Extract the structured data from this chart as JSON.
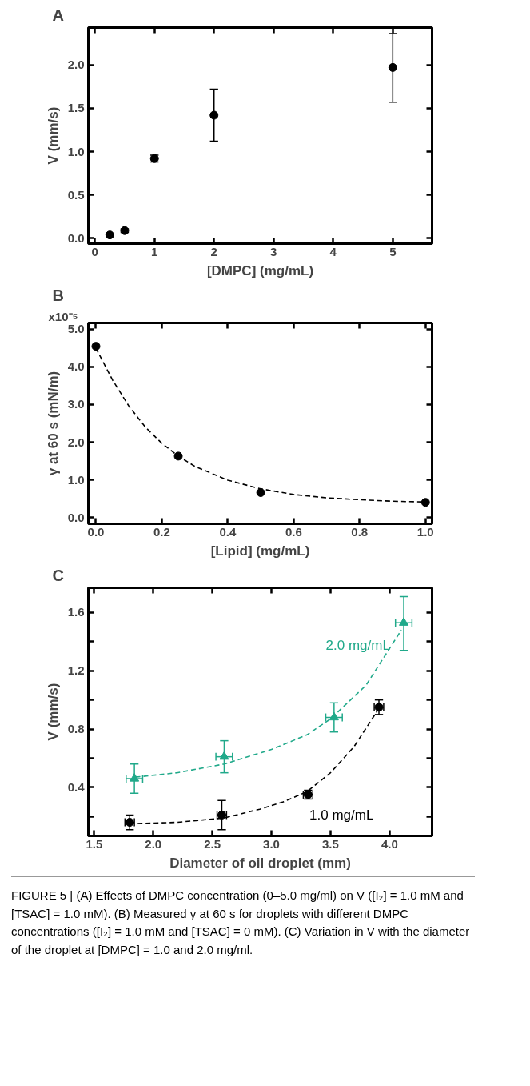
{
  "chart_data": [
    {
      "type": "scatter",
      "title": "A",
      "xlabel": "[DMPC] (mg/mL)",
      "ylabel": "V (mm/s)",
      "x": [
        0.25,
        0.5,
        1,
        2,
        5
      ],
      "values": [
        0.04,
        0.09,
        0.92,
        1.42,
        1.97
      ],
      "errors": [
        null,
        0.02,
        0.04,
        [
          1.12,
          1.72
        ],
        [
          1.57,
          2.36
        ]
      ],
      "color": "#000000",
      "marker": "circle",
      "xlim": [
        -0.11,
        5.66
      ],
      "ylim": [
        -0.06,
        2.43
      ],
      "xticks": [
        0,
        1,
        2,
        3,
        4,
        5
      ],
      "yticks": [
        {
          "value": 0,
          "label": "0.0"
        },
        0.5,
        {
          "value": 1,
          "label": "1.0"
        },
        1.5,
        {
          "value": 2,
          "label": "2.0"
        }
      ],
      "grid": false
    },
    {
      "type": "scatter",
      "title": "B",
      "xlabel": "[Lipid] (mg/mL)",
      "ylabel": "γ at 60 s (mN/m)",
      "xlim": [
        -0.023,
        1.02
      ],
      "ylim": [
        -0.17,
        5.17
      ],
      "xticks": [
        {
          "value": 0,
          "label": "0.0"
        },
        0.2,
        0.4,
        0.6,
        0.8,
        {
          "value": 1,
          "label": "1.0"
        }
      ],
      "yticks": [
        {
          "value": 0,
          "label": "0.0"
        },
        {
          "value": 1,
          "label": "1.0"
        },
        {
          "value": 2,
          "label": "2.0"
        },
        {
          "value": 3,
          "label": "3.0"
        },
        {
          "value": 4,
          "label": "4.0"
        },
        {
          "value": 5,
          "label": "5.0"
        }
      ],
      "grid": false,
      "annotations": [
        "x10⁻⁵"
      ],
      "series": [
        {
          "type": "scatter",
          "color": "#000000",
          "marker": "circle",
          "x": [
            0,
            0.25,
            0.5,
            1.0
          ],
          "values": [
            4.55,
            1.63,
            0.66,
            0.4
          ]
        },
        {
          "type": "line",
          "color": "#000000",
          "marker": "none",
          "line_style": "dashed",
          "x": [
            0,
            0.05,
            0.1,
            0.15,
            0.2,
            0.25,
            0.3,
            0.4,
            0.5,
            0.6,
            0.7,
            0.8,
            0.9,
            1.0
          ],
          "values": [
            4.5,
            3.66,
            2.96,
            2.4,
            1.97,
            1.63,
            1.36,
            0.99,
            0.76,
            0.61,
            0.52,
            0.47,
            0.43,
            0.41
          ]
        }
      ]
    },
    {
      "type": "scatter",
      "title": "C",
      "xlabel": "Diameter of oil droplet (mm)",
      "ylabel": "V (mm/s)",
      "xlim": [
        1.45,
        4.36
      ],
      "ylim": [
        0.067,
        1.77
      ],
      "xticks": [
        1.5,
        {
          "value": 2,
          "label": "2.0"
        },
        2.5,
        {
          "value": 3,
          "label": "3.0"
        },
        3.5,
        {
          "value": 4,
          "label": "4.0"
        }
      ],
      "yticks": [
        {
          "value": 0.2,
          "label": null
        },
        0.4,
        {
          "value": 0.6,
          "label": null
        },
        0.8,
        {
          "value": 1.0,
          "label": null
        },
        1.2,
        {
          "value": 1.4,
          "label": null
        },
        1.6
      ],
      "grid": false,
      "series": [
        {
          "type": "scatter",
          "name": "1.0 mg/mL",
          "color": "#000000",
          "marker": "circle",
          "x": [
            1.8,
            2.58,
            3.31,
            3.91
          ],
          "values": [
            0.16,
            0.21,
            0.35,
            0.95
          ],
          "errors": [
            0.05,
            0.1,
            0.03,
            0.05
          ],
          "xerrors": [
            0.04,
            0.04,
            0.04,
            0.04
          ]
        },
        {
          "type": "scatter",
          "name": "2.0 mg/mL",
          "color": "#20a98a",
          "marker": "triangle",
          "x": [
            1.84,
            2.6,
            3.53,
            4.12
          ],
          "values": [
            0.46,
            0.61,
            0.88,
            1.53
          ],
          "errors": [
            0.1,
            0.11,
            0.1,
            [
              1.34,
              1.71
            ]
          ],
          "xerrors": [
            0.07,
            0.07,
            0.07,
            0.07
          ]
        },
        {
          "type": "line",
          "color": "#000000",
          "marker": "none",
          "line_style": "dashed",
          "x": [
            1.8,
            2.2,
            2.6,
            2.9,
            3.1,
            3.3,
            3.5,
            3.7,
            3.9
          ],
          "values": [
            0.15,
            0.16,
            0.19,
            0.25,
            0.3,
            0.37,
            0.5,
            0.68,
            0.93
          ]
        },
        {
          "type": "line",
          "color": "#20a98a",
          "marker": "none",
          "line_style": "dashed",
          "x": [
            1.85,
            2.2,
            2.6,
            3.0,
            3.3,
            3.5,
            3.8,
            4.1
          ],
          "values": [
            0.47,
            0.5,
            0.56,
            0.66,
            0.76,
            0.87,
            1.1,
            1.48
          ]
        }
      ],
      "annotations": [
        "FIGURE 5 | (A) Effects of DMPC concentration (0–5.0 mg/ml) on V ([I₂] = 1.0 mM and [TSAC] = 1.0 mM). (B) Measured γ at 60 s for droplets with different DMPC concentrations ([I₂] = 1.0 mM and [TSAC] = 0 mM). (C) Variation in V with the diameter of the droplet at [DMPC] = 1.0 and 2.0 mg/ml."
      ]
    }
  ]
}
